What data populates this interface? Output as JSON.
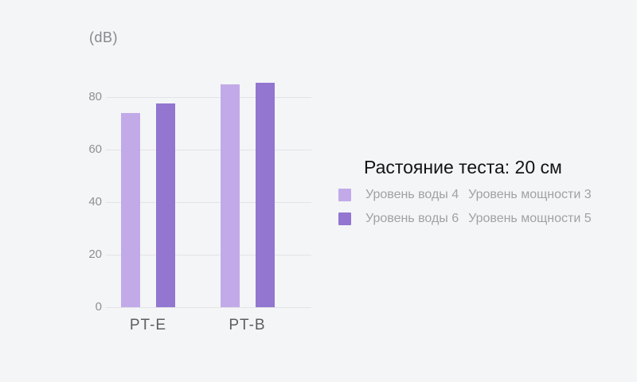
{
  "page": {
    "background_color": "#f4f5f7"
  },
  "chart_data": {
    "type": "bar",
    "unit_label": "(dB)",
    "categories": [
      "PT-E",
      "PT-B"
    ],
    "series": [
      {
        "name": "Уровень воды 4 Уровень мощности 3",
        "color": "#c2aae8",
        "values": [
          74,
          85
        ]
      },
      {
        "name": "Уровень воды 6 Уровень мощности 5",
        "color": "#9276d0",
        "values": [
          77.5,
          85.5
        ]
      }
    ],
    "yticks": [
      0,
      20,
      40,
      60,
      80
    ],
    "ylim": [
      0,
      90
    ],
    "grid": true,
    "gridline_color": "#e3e3e8",
    "legend_position": "right"
  },
  "legend": {
    "title": "Растояние теста: 20 см",
    "items": [
      {
        "swatch_color": "#c2aae8",
        "water_label": "Уровень воды 4",
        "power_label": "Уровень мощности 3"
      },
      {
        "swatch_color": "#9276d0",
        "water_label": "Уровень воды 6",
        "power_label": "Уровень мощности 5"
      }
    ]
  }
}
